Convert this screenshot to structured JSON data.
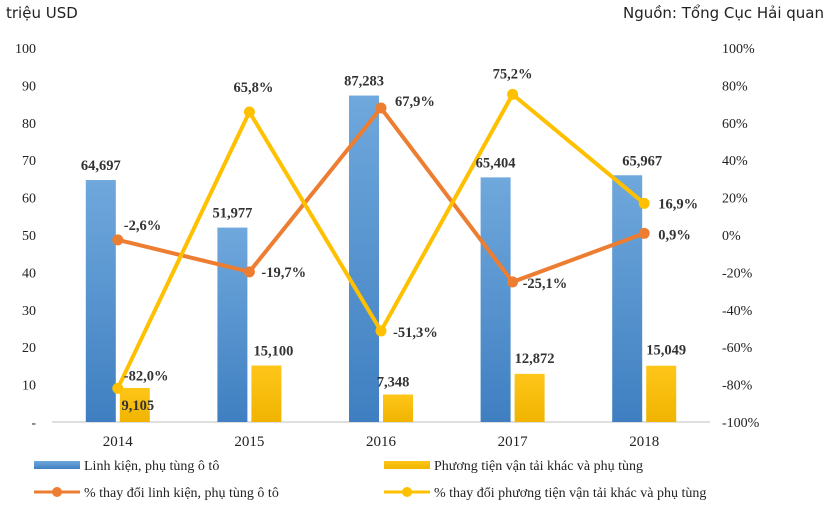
{
  "header": {
    "unit_label": "triệu USD",
    "source_label": "Nguồn: Tổng Cục Hải quan"
  },
  "chart_data": {
    "type": "bar",
    "categories": [
      "2014",
      "2015",
      "2016",
      "2017",
      "2018"
    ],
    "left_axis": {
      "ylim": [
        0,
        100
      ],
      "ticks": [
        "-",
        "10",
        "20",
        "30",
        "40",
        "50",
        "60",
        "70",
        "80",
        "90",
        "100"
      ]
    },
    "right_axis": {
      "ylim": [
        -100,
        100
      ],
      "ticks": [
        "-100%",
        "-80%",
        "-60%",
        "-40%",
        "-20%",
        "0%",
        "20%",
        "40%",
        "60%",
        "80%",
        "100%"
      ]
    },
    "bar_series": [
      {
        "name": "Linh kiện, phụ tùng ô tô",
        "color": "#5b9bd5",
        "values": [
          64.697,
          51.977,
          87.283,
          65.404,
          65.967
        ],
        "labels": [
          "64,697",
          "51,977",
          "87,283",
          "65,404",
          "65,967"
        ]
      },
      {
        "name": "Phương tiện vận tải khác và phụ tùng",
        "color": "#ffc000",
        "values": [
          9.105,
          15.1,
          7.348,
          12.872,
          15.049
        ],
        "labels": [
          "9,105",
          "15,100",
          "7,348",
          "12,872",
          "15,049"
        ]
      }
    ],
    "line_series": [
      {
        "name": "% thay đổi linh kiện, phụ tùng ô tô",
        "color": "#ed7d31",
        "values": [
          -2.6,
          -19.7,
          67.9,
          -25.1,
          0.9
        ],
        "labels": [
          "-2,6%",
          "-19,7%",
          "67,9%",
          "-25,1%",
          "0,9%"
        ]
      },
      {
        "name": "% thay đổi phương tiện vận tải khác và phụ tùng",
        "color": "#ffc000",
        "values": [
          -82.0,
          65.8,
          -51.3,
          75.2,
          16.9
        ],
        "labels": [
          "-82,0%",
          "65,8%",
          "-51,3%",
          "75,2%",
          "16,9%"
        ]
      }
    ],
    "grid": false,
    "legend": "bottom"
  }
}
